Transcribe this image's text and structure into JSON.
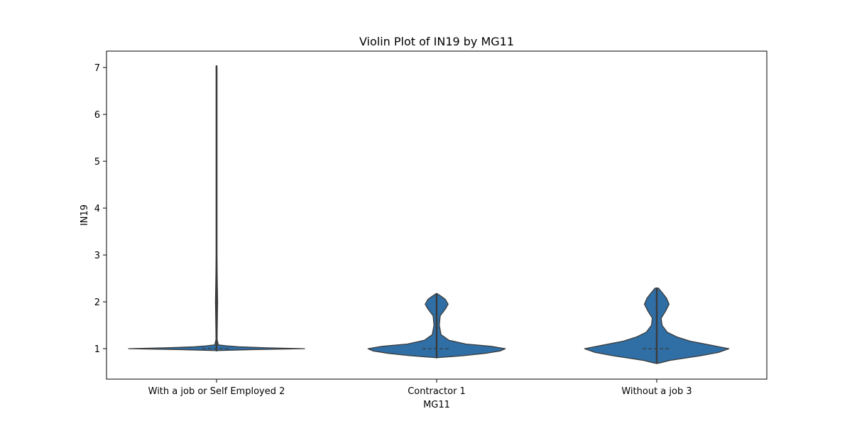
{
  "chart_data": {
    "type": "violin",
    "title": "Violin Plot of IN19 by MG11",
    "xlabel": "MG11",
    "ylabel": "IN19",
    "ylim": [
      0.35,
      7.35
    ],
    "yticks": [
      "1",
      "2",
      "3",
      "4",
      "5",
      "6",
      "7"
    ],
    "grid": false,
    "colors": {
      "fill": "#2f6fa6",
      "edge": "#3b3b3b"
    },
    "categories": [
      "With a job or Self Employed 2",
      "Contractor 1",
      "Without a job 3"
    ],
    "violins": [
      {
        "category": "With a job or Self Employed 2",
        "min": 0.96,
        "max": 7.03,
        "median": 1.0,
        "q1": 1.0,
        "q3": 1.0,
        "outliers": [
          2.0
        ],
        "density": [
          [
            0.96,
            0.02
          ],
          [
            0.98,
            0.4
          ],
          [
            1.0,
            1.0
          ],
          [
            1.02,
            0.55
          ],
          [
            1.04,
            0.25
          ],
          [
            1.06,
            0.12
          ],
          [
            1.08,
            0.02
          ],
          [
            1.2,
            0.006
          ],
          [
            2.0,
            0.012
          ],
          [
            3.0,
            0.004
          ],
          [
            5.0,
            0.004
          ],
          [
            7.03,
            0.004
          ]
        ]
      },
      {
        "category": "Contractor 1",
        "min": 0.81,
        "max": 2.17,
        "median": 1.0,
        "q1": 1.0,
        "q3": 1.0,
        "outliers": [],
        "density": [
          [
            0.81,
            0.02
          ],
          [
            0.85,
            0.3
          ],
          [
            0.9,
            0.55
          ],
          [
            0.95,
            0.72
          ],
          [
            1.0,
            0.78
          ],
          [
            1.05,
            0.62
          ],
          [
            1.1,
            0.33
          ],
          [
            1.18,
            0.14
          ],
          [
            1.3,
            0.05
          ],
          [
            1.5,
            0.03
          ],
          [
            1.7,
            0.04
          ],
          [
            1.85,
            0.1
          ],
          [
            1.95,
            0.13
          ],
          [
            2.05,
            0.1
          ],
          [
            2.12,
            0.05
          ],
          [
            2.17,
            0.01
          ]
        ]
      },
      {
        "category": "Without a job 3",
        "min": 0.69,
        "max": 2.29,
        "median": 1.0,
        "q1": 1.0,
        "q3": 1.0,
        "outliers": [],
        "density": [
          [
            0.69,
            0.02
          ],
          [
            0.75,
            0.15
          ],
          [
            0.85,
            0.5
          ],
          [
            0.92,
            0.7
          ],
          [
            1.0,
            0.82
          ],
          [
            1.08,
            0.6
          ],
          [
            1.16,
            0.38
          ],
          [
            1.25,
            0.23
          ],
          [
            1.35,
            0.12
          ],
          [
            1.5,
            0.06
          ],
          [
            1.65,
            0.05
          ],
          [
            1.8,
            0.1
          ],
          [
            1.95,
            0.14
          ],
          [
            2.08,
            0.11
          ],
          [
            2.2,
            0.06
          ],
          [
            2.29,
            0.02
          ]
        ]
      }
    ]
  }
}
